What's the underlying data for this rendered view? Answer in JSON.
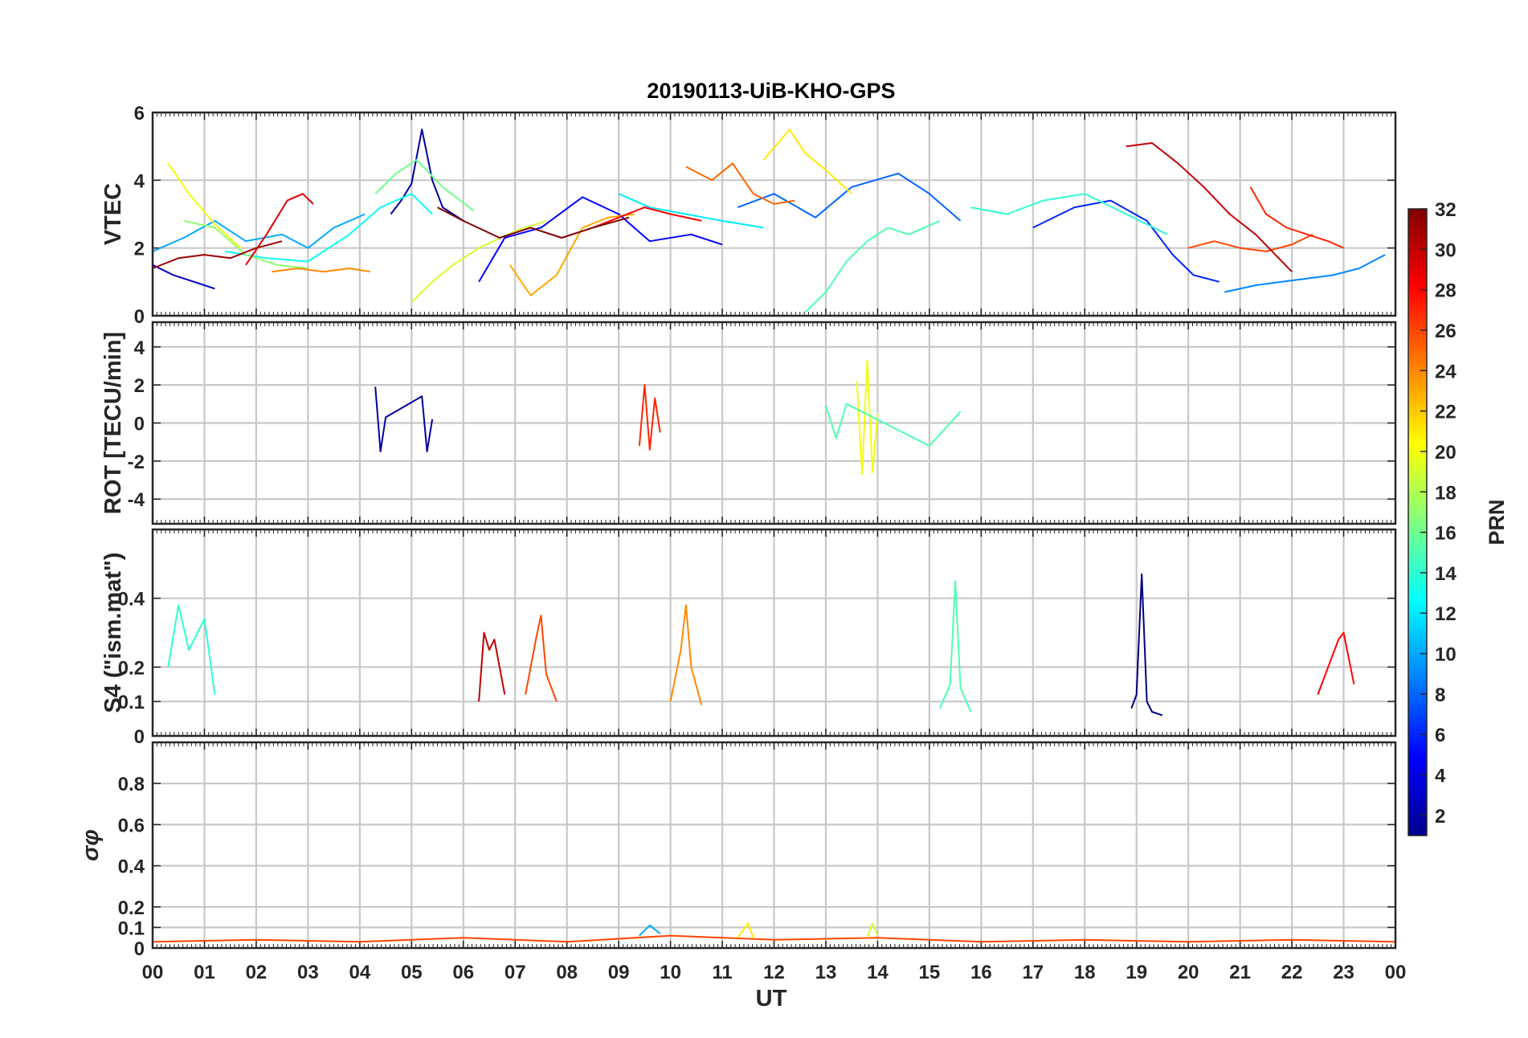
{
  "figure": {
    "title": "20190113-UiB-KHO-GPS",
    "xlabel": "UT",
    "x_ticks": [
      "00",
      "01",
      "02",
      "03",
      "04",
      "05",
      "06",
      "07",
      "08",
      "09",
      "10",
      "11",
      "12",
      "13",
      "14",
      "15",
      "16",
      "17",
      "18",
      "19",
      "20",
      "21",
      "22",
      "23",
      "00"
    ]
  },
  "colorbar": {
    "label": "PRN",
    "range": [
      1,
      32
    ],
    "ticks": [
      "2",
      "4",
      "6",
      "8",
      "10",
      "12",
      "14",
      "16",
      "18",
      "20",
      "22",
      "24",
      "26",
      "28",
      "30",
      "32"
    ],
    "colormap": "jet"
  },
  "chart_data": [
    {
      "type": "line",
      "name": "vtec",
      "ylabel": "VTEC",
      "xlim": [
        0,
        24
      ],
      "ylim": [
        0,
        6
      ],
      "y_ticks": [
        "0",
        "2",
        "4",
        "6"
      ],
      "series": [
        {
          "name": "PRN 2",
          "prn": 2,
          "x": [
            4.6,
            4.8,
            5.0,
            5.2,
            5.4,
            5.6,
            6.0
          ],
          "values": [
            3.0,
            3.4,
            3.9,
            5.5,
            4.0,
            3.2,
            2.8
          ]
        },
        {
          "name": "PRN 3",
          "prn": 3,
          "x": [
            0.0,
            0.4,
            0.8,
            1.2
          ],
          "values": [
            1.5,
            1.2,
            1.0,
            0.8
          ]
        },
        {
          "name": "PRN 5",
          "prn": 5,
          "x": [
            6.3,
            6.8,
            7.5,
            8.3,
            9.0,
            9.6,
            10.4,
            11.0
          ],
          "values": [
            1.0,
            2.3,
            2.6,
            3.5,
            3.0,
            2.2,
            2.4,
            2.1
          ]
        },
        {
          "name": "PRN 6",
          "prn": 6,
          "x": [
            17.0,
            17.8,
            18.5,
            19.2,
            19.7,
            20.1,
            20.6
          ],
          "values": [
            2.6,
            3.2,
            3.4,
            2.8,
            1.8,
            1.2,
            1.0
          ]
        },
        {
          "name": "PRN 8",
          "prn": 8,
          "x": [
            11.3,
            12.0,
            12.8,
            13.5,
            14.4,
            15.0,
            15.6
          ],
          "values": [
            3.2,
            3.6,
            2.9,
            3.8,
            4.2,
            3.6,
            2.8
          ]
        },
        {
          "name": "PRN 9",
          "prn": 9,
          "x": [
            20.7,
            21.3,
            21.8,
            22.3,
            22.8,
            23.3,
            23.8
          ],
          "values": [
            0.7,
            0.9,
            1.0,
            1.1,
            1.2,
            1.4,
            1.8
          ]
        },
        {
          "name": "PRN 10",
          "prn": 10,
          "x": [
            0.0,
            0.6,
            1.2,
            1.8,
            2.5,
            3.0,
            3.5,
            4.1
          ],
          "values": [
            1.9,
            2.3,
            2.8,
            2.2,
            2.4,
            2.0,
            2.6,
            3.0
          ]
        },
        {
          "name": "PRN 12",
          "prn": 12,
          "x": [
            9.0,
            9.6,
            10.3,
            11.0,
            11.8
          ],
          "values": [
            3.6,
            3.2,
            3.0,
            2.8,
            2.6
          ]
        },
        {
          "name": "PRN 13",
          "prn": 13,
          "x": [
            1.4,
            2.2,
            3.0,
            3.8,
            4.4,
            5.0,
            5.4
          ],
          "values": [
            1.9,
            1.7,
            1.6,
            2.4,
            3.2,
            3.6,
            3.0
          ]
        },
        {
          "name": "PRN 14",
          "prn": 14,
          "x": [
            15.8,
            16.5,
            17.2,
            18.0,
            18.8,
            19.6
          ],
          "values": [
            3.2,
            3.0,
            3.4,
            3.6,
            3.0,
            2.4
          ]
        },
        {
          "name": "PRN 15",
          "prn": 15,
          "x": [
            12.6,
            13.0,
            13.4,
            13.8,
            14.2,
            14.6,
            15.2
          ],
          "values": [
            0.1,
            0.7,
            1.6,
            2.2,
            2.6,
            2.4,
            2.8
          ]
        },
        {
          "name": "PRN 16",
          "prn": 16,
          "x": [
            4.3,
            4.7,
            5.1,
            5.6,
            6.2
          ],
          "values": [
            3.6,
            4.2,
            4.6,
            3.8,
            3.1
          ]
        },
        {
          "name": "PRN 17",
          "prn": 17,
          "x": [
            0.6,
            1.2,
            1.8,
            2.4,
            3.0
          ],
          "values": [
            2.8,
            2.6,
            1.8,
            1.5,
            1.4
          ]
        },
        {
          "name": "PRN 19",
          "prn": 19,
          "x": [
            5.0,
            5.4,
            5.8,
            6.3,
            7.0,
            7.6
          ],
          "values": [
            0.4,
            1.0,
            1.5,
            2.0,
            2.5,
            2.8
          ]
        },
        {
          "name": "PRN 20",
          "prn": 20,
          "x": [
            0.3,
            0.7,
            1.2,
            1.7
          ],
          "values": [
            4.5,
            3.6,
            2.7,
            2.0
          ]
        },
        {
          "name": "PRN 21",
          "prn": 21,
          "x": [
            11.8,
            12.3,
            12.6,
            13.0,
            13.5
          ],
          "values": [
            4.6,
            5.5,
            4.8,
            4.3,
            3.6
          ]
        },
        {
          "name": "PRN 23",
          "prn": 23,
          "x": [
            6.9,
            7.3,
            7.8,
            8.3,
            8.8,
            9.3
          ],
          "values": [
            1.5,
            0.6,
            1.2,
            2.6,
            2.9,
            3.0
          ]
        },
        {
          "name": "PRN 24",
          "prn": 24,
          "x": [
            2.3,
            2.8,
            3.3,
            3.8,
            4.2
          ],
          "values": [
            1.3,
            1.4,
            1.3,
            1.4,
            1.3
          ]
        },
        {
          "name": "PRN 25",
          "prn": 25,
          "x": [
            10.3,
            10.8,
            11.2,
            11.6,
            12.0,
            12.4
          ],
          "values": [
            4.4,
            4.0,
            4.5,
            3.6,
            3.3,
            3.4
          ]
        },
        {
          "name": "PRN 26",
          "prn": 26,
          "x": [
            20.0,
            20.5,
            21.0,
            21.5,
            22.0,
            22.4
          ],
          "values": [
            2.0,
            2.2,
            2.0,
            1.9,
            2.1,
            2.4
          ]
        },
        {
          "name": "PRN 27",
          "prn": 27,
          "x": [
            21.2,
            21.5,
            21.9,
            22.3,
            22.7,
            23.0
          ],
          "values": [
            3.8,
            3.0,
            2.6,
            2.4,
            2.2,
            2.0
          ]
        },
        {
          "name": "PRN 28",
          "prn": 28,
          "x": [
            8.5,
            9.0,
            9.5,
            10.0,
            10.6
          ],
          "values": [
            2.6,
            2.9,
            3.2,
            3.0,
            2.8
          ]
        },
        {
          "name": "PRN 29",
          "prn": 29,
          "x": [
            1.8,
            2.2,
            2.6,
            2.9,
            3.1
          ],
          "values": [
            1.5,
            2.4,
            3.4,
            3.6,
            3.3
          ]
        },
        {
          "name": "PRN 30",
          "prn": 30,
          "x": [
            18.8,
            19.3,
            19.8,
            20.3,
            20.8,
            21.3,
            22.0
          ],
          "values": [
            5.0,
            5.1,
            4.5,
            3.8,
            3.0,
            2.4,
            1.3
          ]
        },
        {
          "name": "PRN 31",
          "prn": 31,
          "x": [
            0.0,
            0.5,
            1.0,
            1.5,
            2.0,
            2.5
          ],
          "values": [
            1.4,
            1.7,
            1.8,
            1.7,
            2.0,
            2.2
          ]
        },
        {
          "name": "PRN 32",
          "prn": 32,
          "x": [
            5.5,
            6.0,
            6.7,
            7.3,
            7.9,
            8.5,
            9.2
          ],
          "values": [
            3.2,
            2.8,
            2.3,
            2.6,
            2.3,
            2.6,
            2.9
          ]
        }
      ]
    },
    {
      "type": "line",
      "name": "rot",
      "ylabel": "ROT [TECU/min]",
      "xlim": [
        0,
        24
      ],
      "ylim": [
        -5.3,
        5.3
      ],
      "y_ticks": [
        "-4",
        "-2",
        "0",
        "2",
        "4"
      ],
      "series": [
        {
          "name": "PRN 2",
          "prn": 2,
          "x": [
            4.3,
            4.4,
            4.5,
            5.2,
            5.3,
            5.4
          ],
          "values": [
            1.9,
            -1.5,
            0.3,
            1.4,
            -1.5,
            0.2
          ]
        },
        {
          "name": "PRN 20",
          "prn": 20,
          "x": [
            13.6,
            13.7,
            13.8,
            13.9,
            14.0
          ],
          "values": [
            2.2,
            -2.7,
            3.3,
            -2.6,
            0.5
          ]
        },
        {
          "name": "PRN 27",
          "prn": 27,
          "x": [
            9.4,
            9.5,
            9.6,
            9.7,
            9.8
          ],
          "values": [
            -1.2,
            2.0,
            -1.4,
            1.3,
            -0.5
          ]
        },
        {
          "name": "PRN 15",
          "prn": 15,
          "x": [
            13.0,
            13.2,
            13.4,
            15.0,
            15.6
          ],
          "values": [
            0.9,
            -0.8,
            1.0,
            -1.2,
            0.6
          ]
        }
      ]
    },
    {
      "type": "line",
      "name": "s4",
      "ylabel": "S4 (\"ism.mat\")",
      "xlim": [
        0,
        24
      ],
      "ylim": [
        0,
        0.6
      ],
      "y_ticks": [
        "0",
        "0.1",
        "0.2",
        "0.4"
      ],
      "series": [
        {
          "name": "PRN 1",
          "prn": 1,
          "x": [
            18.9,
            19.0,
            19.1,
            19.2,
            19.3,
            19.5
          ],
          "values": [
            0.08,
            0.12,
            0.47,
            0.1,
            0.07,
            0.06
          ]
        },
        {
          "name": "PRN 14",
          "prn": 14,
          "x": [
            0.3,
            0.5,
            0.7,
            1.0,
            1.2
          ],
          "values": [
            0.2,
            0.38,
            0.25,
            0.34,
            0.12
          ]
        },
        {
          "name": "PRN 15",
          "prn": 15,
          "x": [
            15.2,
            15.4,
            15.5,
            15.6,
            15.8
          ],
          "values": [
            0.08,
            0.15,
            0.45,
            0.14,
            0.07
          ]
        },
        {
          "name": "PRN 26",
          "prn": 26,
          "x": [
            7.2,
            7.4,
            7.5,
            7.6,
            7.8
          ],
          "values": [
            0.12,
            0.28,
            0.35,
            0.18,
            0.1
          ]
        },
        {
          "name": "PRN 24",
          "prn": 24,
          "x": [
            10.0,
            10.2,
            10.3,
            10.4,
            10.6
          ],
          "values": [
            0.1,
            0.25,
            0.38,
            0.2,
            0.09
          ]
        },
        {
          "name": "PRN 30",
          "prn": 30,
          "x": [
            6.3,
            6.4,
            6.5,
            6.6,
            6.8
          ],
          "values": [
            0.1,
            0.3,
            0.25,
            0.28,
            0.12
          ]
        },
        {
          "name": "PRN 28",
          "prn": 28,
          "x": [
            22.5,
            22.7,
            22.9,
            23.0,
            23.2
          ],
          "values": [
            0.12,
            0.2,
            0.28,
            0.3,
            0.15
          ]
        }
      ]
    },
    {
      "type": "line",
      "name": "sigma_phi",
      "ylabel": "σφ",
      "xlim": [
        0,
        24
      ],
      "ylim": [
        0,
        1.0
      ],
      "y_ticks": [
        "0",
        "0.1",
        "0.2",
        "0.4",
        "0.6",
        "0.8"
      ],
      "series": [
        {
          "name": "PRN 26",
          "prn": 26,
          "x": [
            0,
            2,
            4,
            6,
            8,
            10,
            12,
            14,
            16,
            18,
            20,
            22,
            24
          ],
          "values": [
            0.03,
            0.04,
            0.03,
            0.05,
            0.03,
            0.06,
            0.04,
            0.05,
            0.03,
            0.04,
            0.03,
            0.04,
            0.03
          ]
        },
        {
          "name": "PRN 10",
          "prn": 10,
          "x": [
            9.4,
            9.6,
            9.8
          ],
          "values": [
            0.06,
            0.11,
            0.07
          ]
        },
        {
          "name": "PRN 21",
          "prn": 21,
          "x": [
            11.3,
            11.5,
            11.6
          ],
          "values": [
            0.05,
            0.12,
            0.05
          ]
        },
        {
          "name": "PRN 19",
          "prn": 19,
          "x": [
            13.8,
            13.9,
            14.0
          ],
          "values": [
            0.05,
            0.12,
            0.06
          ]
        }
      ]
    }
  ]
}
